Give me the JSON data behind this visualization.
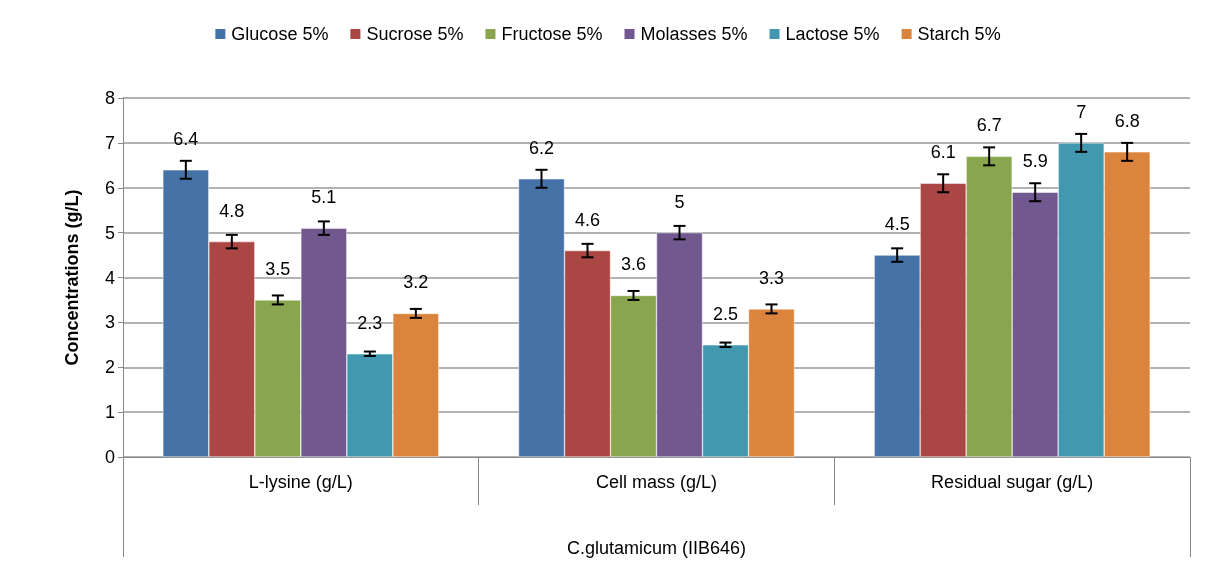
{
  "chart_data": {
    "type": "bar",
    "ylabel": "Concentrations (g/L)",
    "xlabel": "C.glutamicum (IIB646)",
    "categories": [
      "L-lysine (g/L)",
      "Cell mass (g/L)",
      "Residual sugar (g/L)"
    ],
    "series": [
      {
        "name": "Glucose 5%",
        "color": "#4572a7",
        "values": [
          6.4,
          6.2,
          4.5
        ],
        "errors": [
          0.2,
          0.2,
          0.15
        ]
      },
      {
        "name": "Sucrose 5%",
        "color": "#aa4643",
        "values": [
          4.8,
          4.6,
          6.1
        ],
        "errors": [
          0.15,
          0.15,
          0.2
        ]
      },
      {
        "name": "Fructose 5%",
        "color": "#89a54e",
        "values": [
          3.5,
          3.6,
          6.7
        ],
        "errors": [
          0.1,
          0.1,
          0.2
        ]
      },
      {
        "name": "Molasses 5%",
        "color": "#71588f",
        "values": [
          5.1,
          5,
          5.9
        ],
        "errors": [
          0.15,
          0.15,
          0.2
        ]
      },
      {
        "name": "Lactose 5%",
        "color": "#4198af",
        "values": [
          2.3,
          2.5,
          7
        ],
        "errors": [
          0.05,
          0.05,
          0.2
        ]
      },
      {
        "name": "Starch 5%",
        "color": "#db843d",
        "values": [
          3.2,
          3.3,
          6.8
        ],
        "errors": [
          0.1,
          0.1,
          0.2
        ]
      }
    ],
    "ylim": [
      0,
      8
    ],
    "yticks": [
      0,
      1,
      2,
      3,
      4,
      5,
      6,
      7,
      8
    ],
    "grid": "y",
    "legend": "top",
    "data_labels": true
  }
}
